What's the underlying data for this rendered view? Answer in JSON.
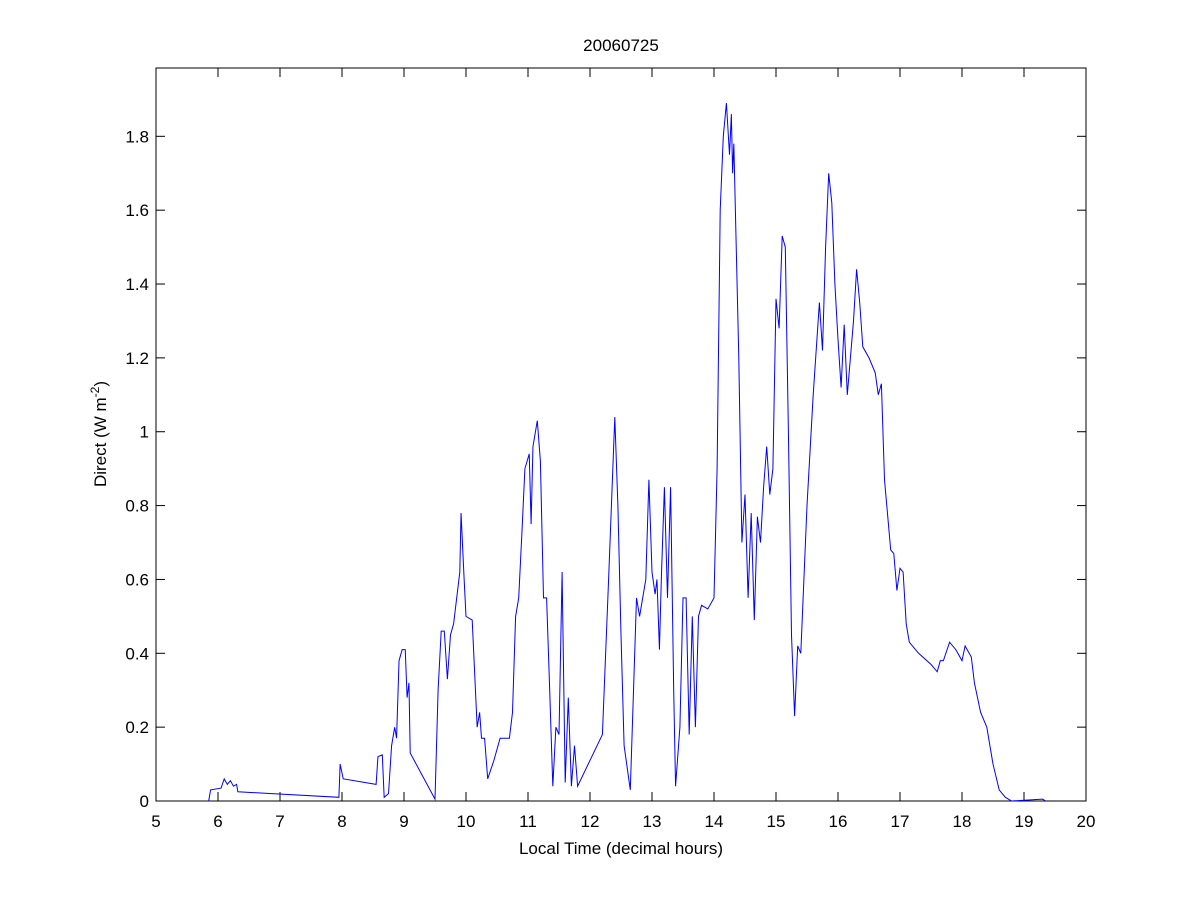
{
  "chart_data": {
    "type": "line",
    "title": "20060725",
    "xlabel": "Local Time (decimal hours)",
    "ylabel_parts": [
      "Direct (W m",
      "-2",
      ")"
    ],
    "xlim": [
      5,
      20
    ],
    "xticks": [
      5,
      6,
      7,
      8,
      9,
      10,
      11,
      12,
      13,
      14,
      15,
      16,
      17,
      18,
      19,
      20
    ],
    "ylim": [
      0,
      1.985
    ],
    "yticks": [
      0,
      0.2,
      0.4,
      0.6,
      0.8,
      1,
      1.2,
      1.4,
      1.6,
      1.8
    ],
    "grid": false,
    "series": [
      {
        "name": "Direct",
        "color": "#0000ff",
        "x": [
          5.85,
          5.88,
          6.05,
          6.1,
          6.15,
          6.2,
          6.25,
          6.3,
          6.32,
          7.95,
          7.97,
          8.02,
          8.55,
          8.58,
          8.65,
          8.68,
          8.75,
          8.8,
          8.85,
          8.88,
          8.92,
          8.97,
          9.02,
          9.05,
          9.08,
          9.1,
          9.5,
          9.55,
          9.6,
          9.65,
          9.7,
          9.75,
          9.8,
          9.9,
          9.92,
          9.97,
          10.0,
          10.1,
          10.18,
          10.22,
          10.25,
          10.3,
          10.35,
          10.45,
          10.55,
          10.7,
          10.75,
          10.8,
          10.85,
          10.9,
          10.95,
          11.02,
          11.05,
          11.08,
          11.15,
          11.2,
          11.25,
          11.3,
          11.35,
          11.4,
          11.45,
          11.5,
          11.55,
          11.6,
          11.65,
          11.7,
          11.75,
          11.8,
          12.2,
          12.3,
          12.4,
          12.45,
          12.5,
          12.55,
          12.65,
          12.75,
          12.8,
          12.9,
          12.95,
          13.0,
          13.05,
          13.08,
          13.12,
          13.15,
          13.2,
          13.25,
          13.3,
          13.35,
          13.38,
          13.45,
          13.5,
          13.55,
          13.6,
          13.65,
          13.7,
          13.75,
          13.8,
          13.9,
          14.0,
          14.05,
          14.1,
          14.15,
          14.2,
          14.25,
          14.28,
          14.3,
          14.32,
          14.4,
          14.45,
          14.5,
          14.55,
          14.6,
          14.65,
          14.7,
          14.75,
          14.8,
          14.85,
          14.9,
          14.95,
          15.0,
          15.05,
          15.1,
          15.15,
          15.2,
          15.25,
          15.3,
          15.35,
          15.4,
          15.5,
          15.6,
          15.7,
          15.75,
          15.8,
          15.85,
          15.9,
          15.95,
          16.0,
          16.05,
          16.1,
          16.15,
          16.2,
          16.25,
          16.3,
          16.35,
          16.4,
          16.5,
          16.6,
          16.65,
          16.7,
          16.75,
          16.85,
          16.9,
          16.95,
          17.0,
          17.05,
          17.1,
          17.15,
          17.3,
          17.5,
          17.6,
          17.65,
          17.7,
          17.8,
          17.9,
          18.0,
          18.05,
          18.15,
          18.2,
          18.3,
          18.4,
          18.5,
          18.6,
          18.7,
          18.8,
          19.3,
          19.35
        ],
        "values": [
          0,
          0.03,
          0.035,
          0.06,
          0.045,
          0.055,
          0.04,
          0.045,
          0.025,
          0.01,
          0.1,
          0.06,
          0.045,
          0.12,
          0.125,
          0.01,
          0.02,
          0.15,
          0.2,
          0.17,
          0.38,
          0.41,
          0.41,
          0.28,
          0.32,
          0.13,
          0.005,
          0.3,
          0.46,
          0.46,
          0.33,
          0.45,
          0.48,
          0.62,
          0.78,
          0.6,
          0.5,
          0.49,
          0.2,
          0.24,
          0.17,
          0.17,
          0.06,
          0.11,
          0.17,
          0.17,
          0.24,
          0.5,
          0.55,
          0.72,
          0.9,
          0.94,
          0.75,
          0.96,
          1.03,
          0.92,
          0.55,
          0.55,
          0.3,
          0.04,
          0.2,
          0.18,
          0.62,
          0.05,
          0.28,
          0.04,
          0.15,
          0.04,
          0.18,
          0.6,
          1.04,
          0.8,
          0.45,
          0.15,
          0.03,
          0.55,
          0.5,
          0.6,
          0.87,
          0.62,
          0.56,
          0.6,
          0.41,
          0.6,
          0.85,
          0.55,
          0.85,
          0.3,
          0.04,
          0.2,
          0.55,
          0.55,
          0.18,
          0.5,
          0.2,
          0.5,
          0.53,
          0.52,
          0.55,
          0.9,
          1.6,
          1.8,
          1.89,
          1.75,
          1.86,
          1.7,
          1.78,
          1.2,
          0.7,
          0.83,
          0.55,
          0.78,
          0.49,
          0.77,
          0.7,
          0.85,
          0.96,
          0.83,
          0.9,
          1.36,
          1.28,
          1.53,
          1.5,
          1.0,
          0.45,
          0.23,
          0.42,
          0.4,
          0.8,
          1.1,
          1.35,
          1.22,
          1.5,
          1.7,
          1.62,
          1.4,
          1.25,
          1.12,
          1.29,
          1.1,
          1.2,
          1.3,
          1.44,
          1.35,
          1.23,
          1.2,
          1.16,
          1.1,
          1.13,
          0.87,
          0.68,
          0.67,
          0.57,
          0.63,
          0.62,
          0.48,
          0.43,
          0.4,
          0.37,
          0.35,
          0.38,
          0.38,
          0.43,
          0.41,
          0.38,
          0.42,
          0.39,
          0.32,
          0.24,
          0.2,
          0.1,
          0.03,
          0.01,
          0,
          0.005,
          0
        ]
      }
    ]
  }
}
